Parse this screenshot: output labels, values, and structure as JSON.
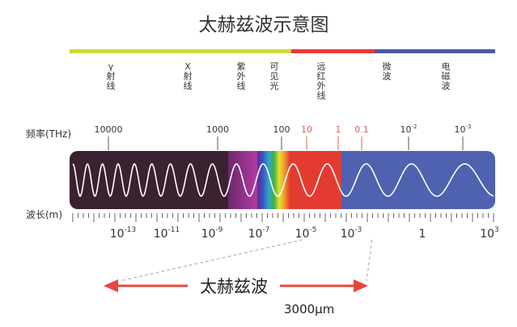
{
  "title": "太赫兹波示意图",
  "colors": {
    "bar_yellow": "#cfd63a",
    "bar_red": "#e8393a",
    "bar_blue": "#4a5aa8",
    "xray_band": "#3a2230",
    "uv_band": "#a23aa0",
    "ir_band": "#e43b31",
    "radio_band": "#4e62b0",
    "accent_red": "#e5473e",
    "tick_red": "#e06060",
    "wave": "#ffffff"
  },
  "bands": [
    {
      "label": "γ射线",
      "lines": [
        "γ",
        "射",
        "线"
      ]
    },
    {
      "label": "X射线",
      "lines": [
        "X",
        "射",
        "线"
      ]
    },
    {
      "label": "紫外线",
      "lines": [
        "紫",
        "外",
        "线"
      ]
    },
    {
      "label": "可见光",
      "lines": [
        "可",
        "见",
        "光"
      ]
    },
    {
      "label": "远红外线",
      "lines": [
        "远",
        "红",
        "外",
        "线"
      ]
    },
    {
      "label": "微波",
      "lines": [
        "微",
        "波"
      ]
    },
    {
      "label": "电磁波",
      "lines": [
        "电",
        "磁",
        "波"
      ]
    }
  ],
  "frequency_axis": {
    "label": "频率(THz)",
    "ticks": [
      {
        "base": "10000",
        "exp": "",
        "highlight": false
      },
      {
        "base": "1000",
        "exp": "",
        "highlight": false
      },
      {
        "base": "100",
        "exp": "",
        "highlight": false
      },
      {
        "base": "10",
        "exp": "",
        "highlight": true
      },
      {
        "base": "1",
        "exp": "",
        "highlight": true
      },
      {
        "base": "0.1",
        "exp": "",
        "highlight": true
      },
      {
        "base": "10",
        "exp": "-2",
        "highlight": false
      },
      {
        "base": "10",
        "exp": "-3",
        "highlight": false
      }
    ]
  },
  "wavelength_axis": {
    "label": "波长(m)",
    "ticks": [
      {
        "base": "10",
        "exp": "-13"
      },
      {
        "base": "10",
        "exp": "-11"
      },
      {
        "base": "10",
        "exp": "-9"
      },
      {
        "base": "10",
        "exp": "-7"
      },
      {
        "base": "10",
        "exp": "-5"
      },
      {
        "base": "10",
        "exp": "-3"
      },
      {
        "base": "1",
        "exp": ""
      },
      {
        "base": "10",
        "exp": "3"
      }
    ]
  },
  "terahertz": {
    "label": "太赫兹波",
    "wavelength": "3000μm"
  }
}
